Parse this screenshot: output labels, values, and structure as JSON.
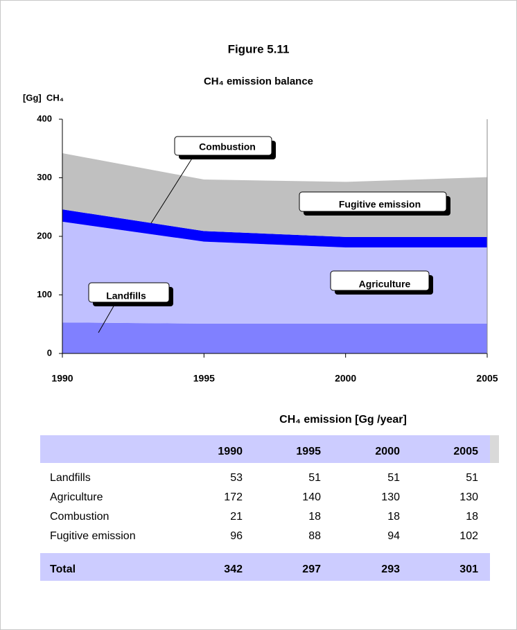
{
  "chart_data": {
    "type": "area",
    "title": "Figure 5.11",
    "subtitle": "CH₄ emission balance",
    "y_label": "[Gg]  CH₄",
    "x": [
      1990,
      1995,
      2000,
      2005
    ],
    "xlim": [
      1990,
      2005
    ],
    "ylim": [
      0,
      400
    ],
    "yticks": [
      0,
      100,
      200,
      300,
      400
    ],
    "stacked": true,
    "series": [
      {
        "name": "Landfills",
        "color": "#8080ff",
        "values": [
          53,
          51,
          51,
          51
        ]
      },
      {
        "name": "Agriculture",
        "color": "#c0c0ff",
        "values": [
          172,
          140,
          130,
          130
        ]
      },
      {
        "name": "Combustion",
        "color": "#0000ff",
        "values": [
          21,
          18,
          18,
          18
        ]
      },
      {
        "name": "Fugitive emission",
        "color": "#c0c0c0",
        "values": [
          96,
          88,
          94,
          102
        ]
      }
    ]
  },
  "table": {
    "caption": "CH₄ emission [Gg /year]",
    "total_label": "Total",
    "totals": [
      342,
      297,
      293,
      301
    ]
  }
}
